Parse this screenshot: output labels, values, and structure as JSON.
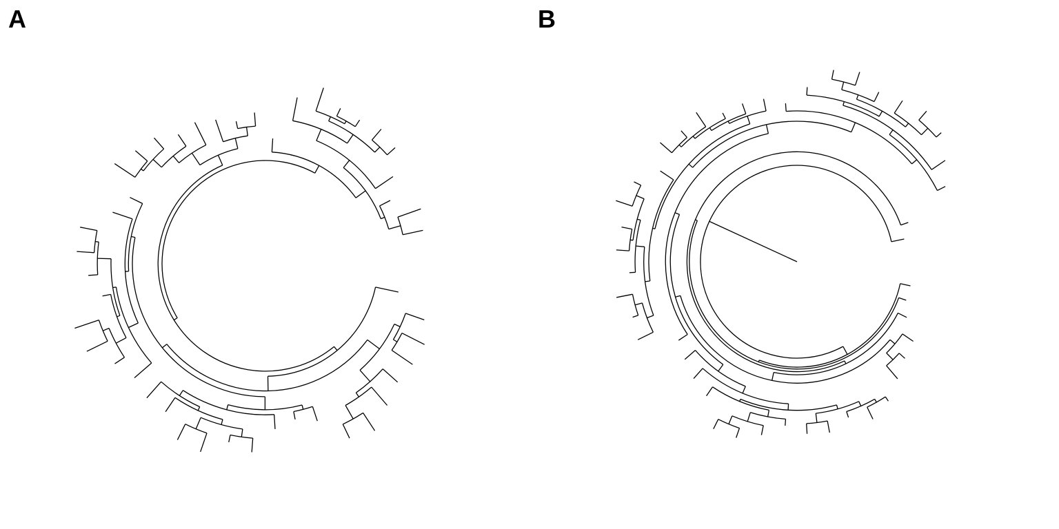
{
  "panels": [
    {
      "label": "A"
    },
    {
      "label": "B"
    }
  ],
  "colors": {
    "line": "#000000",
    "background": "#ffffff"
  }
}
